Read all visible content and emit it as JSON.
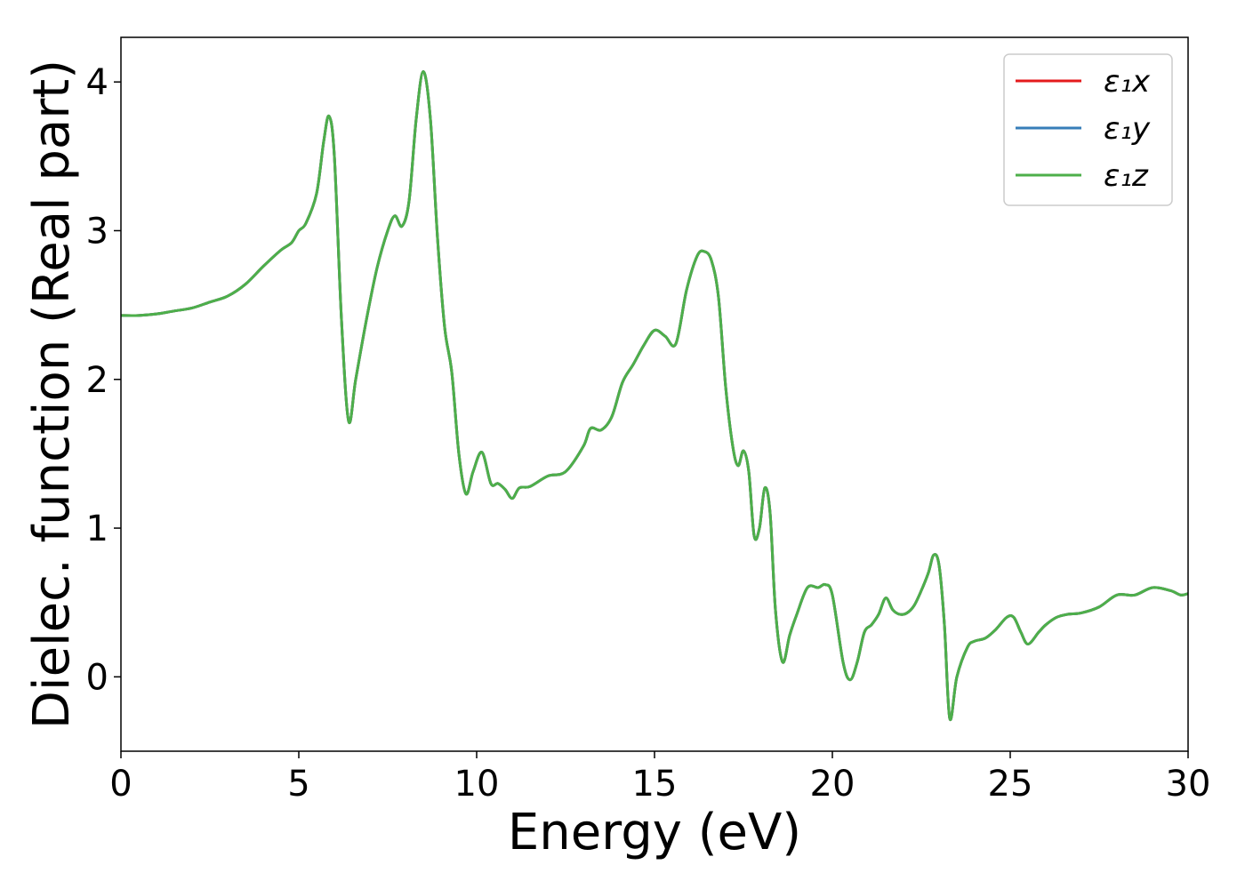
{
  "chart_data": {
    "type": "line",
    "xlabel": "Energy (eV)",
    "ylabel": "Dielec. function (Real part)",
    "xlim": [
      0,
      30
    ],
    "ylim": [
      -0.5,
      4.3
    ],
    "xticks": [
      "0",
      "5",
      "10",
      "15",
      "20",
      "25",
      "30"
    ],
    "yticks": [
      "0",
      "1",
      "2",
      "3",
      "4"
    ],
    "legend_position": "top-right",
    "grid": false,
    "series": [
      {
        "name": "ε₁x",
        "color": "#e41a1c",
        "x": [
          0,
          0.5,
          1,
          1.5,
          2,
          2.5,
          3,
          3.5,
          4,
          4.5,
          4.8,
          5.0,
          5.2,
          5.5,
          5.7,
          5.85,
          6.0,
          6.2,
          6.4,
          6.6,
          6.9,
          7.2,
          7.5,
          7.7,
          7.9,
          8.1,
          8.3,
          8.5,
          8.7,
          8.9,
          9.1,
          9.3,
          9.5,
          9.7,
          9.9,
          10.15,
          10.4,
          10.6,
          10.8,
          11.0,
          11.2,
          11.5,
          12.0,
          12.5,
          13.0,
          13.2,
          13.5,
          13.8,
          14.1,
          14.4,
          14.7,
          15.0,
          15.3,
          15.6,
          15.9,
          16.2,
          16.4,
          16.6,
          16.8,
          17.0,
          17.2,
          17.35,
          17.5,
          17.65,
          17.8,
          17.95,
          18.1,
          18.25,
          18.4,
          18.6,
          18.8,
          19.0,
          19.3,
          19.6,
          19.8,
          20.0,
          20.3,
          20.5,
          20.7,
          20.9,
          21.1,
          21.3,
          21.5,
          21.7,
          21.9,
          22.1,
          22.3,
          22.5,
          22.7,
          22.85,
          23.0,
          23.15,
          23.3,
          23.5,
          23.8,
          24.0,
          24.3,
          24.6,
          24.9,
          25.1,
          25.3,
          25.5,
          25.8,
          26.0,
          26.3,
          26.6,
          27.0,
          27.5,
          28.0,
          28.5,
          29.0,
          29.5,
          29.8,
          30
        ],
        "y": [
          2.43,
          2.43,
          2.44,
          2.46,
          2.48,
          2.52,
          2.56,
          2.64,
          2.76,
          2.87,
          2.92,
          3.0,
          3.05,
          3.25,
          3.6,
          3.77,
          3.5,
          2.4,
          1.72,
          2.0,
          2.4,
          2.75,
          3.0,
          3.1,
          3.03,
          3.2,
          3.75,
          4.07,
          3.75,
          2.95,
          2.35,
          2.05,
          1.5,
          1.23,
          1.38,
          1.51,
          1.3,
          1.3,
          1.26,
          1.2,
          1.27,
          1.28,
          1.35,
          1.38,
          1.55,
          1.67,
          1.66,
          1.75,
          1.98,
          2.1,
          2.23,
          2.33,
          2.29,
          2.24,
          2.6,
          2.83,
          2.86,
          2.8,
          2.55,
          1.95,
          1.55,
          1.42,
          1.52,
          1.38,
          0.95,
          1.0,
          1.27,
          1.1,
          0.45,
          0.1,
          0.28,
          0.42,
          0.6,
          0.6,
          0.62,
          0.55,
          0.1,
          -0.02,
          0.1,
          0.3,
          0.35,
          0.42,
          0.53,
          0.45,
          0.42,
          0.43,
          0.48,
          0.58,
          0.7,
          0.82,
          0.75,
          0.35,
          -0.28,
          0.0,
          0.2,
          0.24,
          0.26,
          0.32,
          0.4,
          0.4,
          0.3,
          0.22,
          0.3,
          0.35,
          0.4,
          0.42,
          0.43,
          0.47,
          0.55,
          0.55,
          0.6,
          0.58,
          0.55,
          0.56
        ]
      },
      {
        "name": "ε₁y",
        "color": "#377eb8",
        "x": [
          0,
          0.5,
          1,
          1.5,
          2,
          2.5,
          3,
          3.5,
          4,
          4.5,
          4.8,
          5.0,
          5.2,
          5.5,
          5.7,
          5.85,
          6.0,
          6.2,
          6.4,
          6.6,
          6.9,
          7.2,
          7.5,
          7.7,
          7.9,
          8.1,
          8.3,
          8.5,
          8.7,
          8.9,
          9.1,
          9.3,
          9.5,
          9.7,
          9.9,
          10.15,
          10.4,
          10.6,
          10.8,
          11.0,
          11.2,
          11.5,
          12.0,
          12.5,
          13.0,
          13.2,
          13.5,
          13.8,
          14.1,
          14.4,
          14.7,
          15.0,
          15.3,
          15.6,
          15.9,
          16.2,
          16.4,
          16.6,
          16.8,
          17.0,
          17.2,
          17.35,
          17.5,
          17.65,
          17.8,
          17.95,
          18.1,
          18.25,
          18.4,
          18.6,
          18.8,
          19.0,
          19.3,
          19.6,
          19.8,
          20.0,
          20.3,
          20.5,
          20.7,
          20.9,
          21.1,
          21.3,
          21.5,
          21.7,
          21.9,
          22.1,
          22.3,
          22.5,
          22.7,
          22.85,
          23.0,
          23.15,
          23.3,
          23.5,
          23.8,
          24.0,
          24.3,
          24.6,
          24.9,
          25.1,
          25.3,
          25.5,
          25.8,
          26.0,
          26.3,
          26.6,
          27.0,
          27.5,
          28.0,
          28.5,
          29.0,
          29.5,
          29.8,
          30
        ],
        "y": [
          2.43,
          2.43,
          2.44,
          2.46,
          2.48,
          2.52,
          2.56,
          2.64,
          2.76,
          2.87,
          2.92,
          3.0,
          3.05,
          3.25,
          3.6,
          3.77,
          3.5,
          2.4,
          1.72,
          2.0,
          2.4,
          2.75,
          3.0,
          3.1,
          3.03,
          3.2,
          3.75,
          4.07,
          3.75,
          2.95,
          2.35,
          2.05,
          1.5,
          1.23,
          1.38,
          1.51,
          1.3,
          1.3,
          1.26,
          1.2,
          1.27,
          1.28,
          1.35,
          1.38,
          1.55,
          1.67,
          1.66,
          1.75,
          1.98,
          2.1,
          2.23,
          2.33,
          2.29,
          2.24,
          2.6,
          2.83,
          2.86,
          2.8,
          2.55,
          1.95,
          1.55,
          1.42,
          1.52,
          1.38,
          0.95,
          1.0,
          1.27,
          1.1,
          0.45,
          0.1,
          0.28,
          0.42,
          0.6,
          0.6,
          0.62,
          0.55,
          0.1,
          -0.02,
          0.1,
          0.3,
          0.35,
          0.42,
          0.53,
          0.45,
          0.42,
          0.43,
          0.48,
          0.58,
          0.7,
          0.82,
          0.75,
          0.35,
          -0.28,
          0.0,
          0.2,
          0.24,
          0.26,
          0.32,
          0.4,
          0.4,
          0.3,
          0.22,
          0.3,
          0.35,
          0.4,
          0.42,
          0.43,
          0.47,
          0.55,
          0.55,
          0.6,
          0.58,
          0.55,
          0.56
        ]
      },
      {
        "name": "ε₁z",
        "color": "#4daf4a",
        "x": [
          0,
          0.5,
          1,
          1.5,
          2,
          2.5,
          3,
          3.5,
          4,
          4.5,
          4.8,
          5.0,
          5.2,
          5.5,
          5.7,
          5.85,
          6.0,
          6.2,
          6.4,
          6.6,
          6.9,
          7.2,
          7.5,
          7.7,
          7.9,
          8.1,
          8.3,
          8.5,
          8.7,
          8.9,
          9.1,
          9.3,
          9.5,
          9.7,
          9.9,
          10.15,
          10.4,
          10.6,
          10.8,
          11.0,
          11.2,
          11.5,
          12.0,
          12.5,
          13.0,
          13.2,
          13.5,
          13.8,
          14.1,
          14.4,
          14.7,
          15.0,
          15.3,
          15.6,
          15.9,
          16.2,
          16.4,
          16.6,
          16.8,
          17.0,
          17.2,
          17.35,
          17.5,
          17.65,
          17.8,
          17.95,
          18.1,
          18.25,
          18.4,
          18.6,
          18.8,
          19.0,
          19.3,
          19.6,
          19.8,
          20.0,
          20.3,
          20.5,
          20.7,
          20.9,
          21.1,
          21.3,
          21.5,
          21.7,
          21.9,
          22.1,
          22.3,
          22.5,
          22.7,
          22.85,
          23.0,
          23.15,
          23.3,
          23.5,
          23.8,
          24.0,
          24.3,
          24.6,
          24.9,
          25.1,
          25.3,
          25.5,
          25.8,
          26.0,
          26.3,
          26.6,
          27.0,
          27.5,
          28.0,
          28.5,
          29.0,
          29.5,
          29.8,
          30
        ],
        "y": [
          2.43,
          2.43,
          2.44,
          2.46,
          2.48,
          2.52,
          2.56,
          2.64,
          2.76,
          2.87,
          2.92,
          3.0,
          3.05,
          3.25,
          3.6,
          3.77,
          3.5,
          2.4,
          1.72,
          2.0,
          2.4,
          2.75,
          3.0,
          3.1,
          3.03,
          3.2,
          3.75,
          4.07,
          3.75,
          2.95,
          2.35,
          2.05,
          1.5,
          1.23,
          1.38,
          1.51,
          1.3,
          1.3,
          1.26,
          1.2,
          1.27,
          1.28,
          1.35,
          1.38,
          1.55,
          1.67,
          1.66,
          1.75,
          1.98,
          2.1,
          2.23,
          2.33,
          2.29,
          2.24,
          2.6,
          2.83,
          2.86,
          2.8,
          2.55,
          1.95,
          1.55,
          1.42,
          1.52,
          1.38,
          0.95,
          1.0,
          1.27,
          1.1,
          0.45,
          0.1,
          0.28,
          0.42,
          0.6,
          0.6,
          0.62,
          0.55,
          0.1,
          -0.02,
          0.1,
          0.3,
          0.35,
          0.42,
          0.53,
          0.45,
          0.42,
          0.43,
          0.48,
          0.58,
          0.7,
          0.82,
          0.75,
          0.35,
          -0.28,
          0.0,
          0.2,
          0.24,
          0.26,
          0.32,
          0.4,
          0.4,
          0.3,
          0.22,
          0.3,
          0.35,
          0.4,
          0.42,
          0.43,
          0.47,
          0.55,
          0.55,
          0.6,
          0.58,
          0.55,
          0.56
        ]
      }
    ]
  }
}
